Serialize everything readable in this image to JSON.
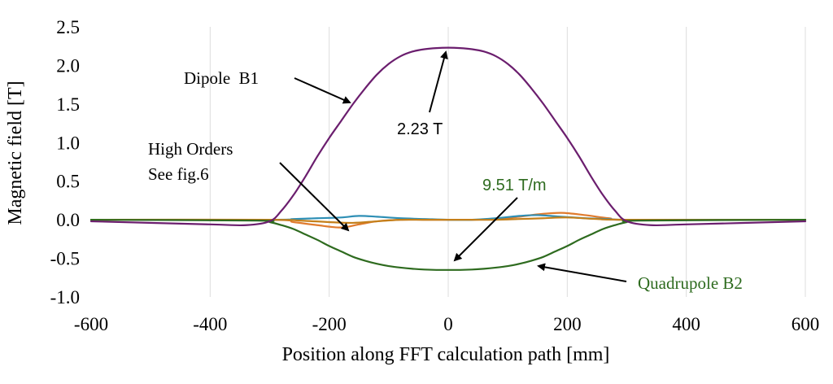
{
  "chart_data": {
    "type": "line",
    "xlabel": "Position along FFT calculation path [mm]",
    "ylabel": "Magnetic field [T]",
    "xlim": [
      -600,
      600
    ],
    "ylim": [
      -1.0,
      2.5
    ],
    "x_ticks": [
      -600,
      -400,
      -200,
      0,
      200,
      400,
      600
    ],
    "y_ticks": [
      -1.0,
      -0.5,
      0.0,
      0.5,
      1.0,
      1.5,
      2.0,
      2.5
    ],
    "x_tick_labels": [
      "-600",
      "-400",
      "-200",
      "0",
      "200",
      "400",
      "600"
    ],
    "y_tick_labels": [
      "-1.0",
      "-0.5",
      "0.0",
      "0.5",
      "1.0",
      "1.5",
      "2.0",
      "2.5"
    ],
    "grid": "vertical",
    "series": [
      {
        "color": "#6b1e6e",
        "x": [
          -600,
          -400,
          -340,
          -300,
          -280,
          -260,
          -240,
          -220,
          -200,
          -180,
          -160,
          -140,
          -120,
          -100,
          -80,
          -60,
          -40,
          -20,
          0,
          20,
          40,
          60,
          80,
          100,
          120,
          140,
          160,
          180,
          200,
          220,
          240,
          260,
          280,
          300,
          340,
          400,
          600
        ],
        "values": [
          -0.02,
          -0.06,
          -0.07,
          -0.02,
          0.12,
          0.32,
          0.56,
          0.82,
          1.06,
          1.28,
          1.5,
          1.7,
          1.88,
          2.02,
          2.12,
          2.18,
          2.21,
          2.225,
          2.23,
          2.225,
          2.21,
          2.18,
          2.12,
          2.02,
          1.88,
          1.7,
          1.5,
          1.28,
          1.06,
          0.82,
          0.56,
          0.32,
          0.12,
          -0.02,
          -0.07,
          -0.06,
          -0.02
        ]
      },
      {
        "color": "#2e6b1f",
        "x": [
          -600,
          -320,
          -300,
          -280,
          -260,
          -240,
          -220,
          -200,
          -180,
          -160,
          -140,
          -120,
          -100,
          -80,
          -60,
          -40,
          -20,
          0,
          20,
          40,
          60,
          80,
          100,
          120,
          140,
          160,
          180,
          200,
          220,
          240,
          260,
          280,
          300,
          320,
          600
        ],
        "values": [
          0.0,
          -0.01,
          -0.03,
          -0.07,
          -0.12,
          -0.19,
          -0.26,
          -0.34,
          -0.41,
          -0.48,
          -0.53,
          -0.57,
          -0.6,
          -0.62,
          -0.635,
          -0.645,
          -0.65,
          -0.65,
          -0.65,
          -0.645,
          -0.635,
          -0.62,
          -0.6,
          -0.57,
          -0.53,
          -0.48,
          -0.41,
          -0.34,
          -0.26,
          -0.19,
          -0.12,
          -0.07,
          -0.03,
          -0.01,
          0.0
        ]
      },
      {
        "color": "#e07b2e",
        "x": [
          -600,
          -300,
          -260,
          -220,
          -180,
          -150,
          -120,
          -80,
          -40,
          0,
          40,
          80,
          120,
          150,
          190,
          230,
          270,
          310,
          600
        ],
        "values": [
          0.0,
          0.0,
          -0.03,
          -0.07,
          -0.1,
          -0.06,
          -0.02,
          0.0,
          0.0,
          0.0,
          0.0,
          0.01,
          0.04,
          0.07,
          0.09,
          0.06,
          0.02,
          0.0,
          0.0
        ]
      },
      {
        "color": "#2e8fb5",
        "x": [
          -600,
          -300,
          -260,
          -220,
          -180,
          -150,
          -120,
          -80,
          -40,
          0,
          40,
          80,
          120,
          150,
          190,
          230,
          270,
          310,
          600
        ],
        "values": [
          0.0,
          0.0,
          0.01,
          0.02,
          0.03,
          0.05,
          0.04,
          0.02,
          0.01,
          0.0,
          0.0,
          0.02,
          0.05,
          0.06,
          0.04,
          0.02,
          0.01,
          0.0,
          0.0
        ]
      },
      {
        "color": "#c47f1a",
        "x": [
          -600,
          -300,
          -250,
          -200,
          -160,
          -120,
          -80,
          -40,
          0,
          40,
          80,
          120,
          160,
          200,
          250,
          300,
          600
        ],
        "values": [
          0.0,
          0.0,
          -0.01,
          -0.03,
          -0.04,
          -0.02,
          0.0,
          0.0,
          0.0,
          0.0,
          0.0,
          0.01,
          0.02,
          0.03,
          0.01,
          0.0,
          0.0
        ]
      }
    ],
    "annotations": [
      {
        "id": "dipole",
        "text": "Dipole  B1"
      },
      {
        "id": "peak",
        "text": "2.23 T"
      },
      {
        "id": "high1",
        "text": "High Orders"
      },
      {
        "id": "high2",
        "text": "See fig.6"
      },
      {
        "id": "quadval",
        "text": "9.51 T/m"
      },
      {
        "id": "quad",
        "text": "Quadrupole B2"
      }
    ]
  }
}
